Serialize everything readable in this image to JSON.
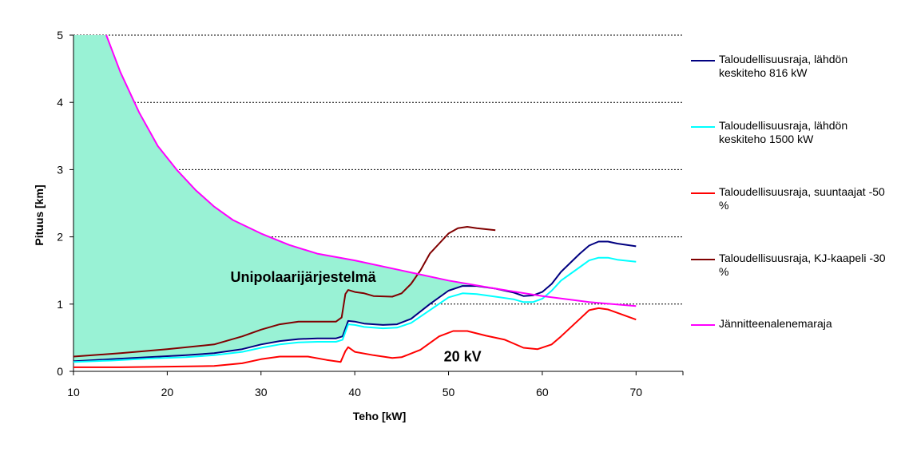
{
  "chart_data": {
    "type": "line",
    "xlabel": "Teho [kW]",
    "ylabel": "Pituus [km]",
    "xlim": [
      10,
      75
    ],
    "ylim": [
      0,
      5
    ],
    "x_ticks": [
      "10",
      "20",
      "30",
      "40",
      "50",
      "60",
      "70"
    ],
    "y_ticks": [
      "0",
      "1",
      "2",
      "3",
      "4",
      "5"
    ],
    "grid": "horizontal dotted",
    "legend_position": "right",
    "annotations": [
      {
        "text": "Unipolaarijärjestelmä",
        "x": 34.5,
        "y": 1.4
      },
      {
        "text": "20 kV",
        "x": 51.5,
        "y": 0.22
      }
    ],
    "shaded_region": {
      "label_ref": "Unipolaarijärjestelmä",
      "color": "#99F2D5",
      "between": [
        "Taloudellisuusraja, lähdön keskiteho 816 kW",
        "Jännitteenalenemaraja"
      ]
    },
    "series": [
      {
        "name": "Taloudellisuusraja, lähdön keskiteho 816 kW",
        "color": "#000080",
        "points": [
          [
            10,
            0.15
          ],
          [
            14,
            0.18
          ],
          [
            18,
            0.21
          ],
          [
            22,
            0.24
          ],
          [
            25,
            0.27
          ],
          [
            28,
            0.33
          ],
          [
            30,
            0.4
          ],
          [
            32,
            0.45
          ],
          [
            34,
            0.48
          ],
          [
            36,
            0.49
          ],
          [
            38,
            0.49
          ],
          [
            38.7,
            0.52
          ],
          [
            39.3,
            0.75
          ],
          [
            40,
            0.74
          ],
          [
            41,
            0.71
          ],
          [
            43,
            0.69
          ],
          [
            44.5,
            0.7
          ],
          [
            46,
            0.78
          ],
          [
            48,
            1.0
          ],
          [
            50,
            1.2
          ],
          [
            51.5,
            1.27
          ],
          [
            53,
            1.27
          ],
          [
            55,
            1.23
          ],
          [
            57,
            1.17
          ],
          [
            58,
            1.12
          ],
          [
            59,
            1.13
          ],
          [
            60,
            1.18
          ],
          [
            61,
            1.3
          ],
          [
            62,
            1.48
          ],
          [
            64,
            1.75
          ],
          [
            65,
            1.87
          ],
          [
            66,
            1.93
          ],
          [
            67,
            1.93
          ],
          [
            68,
            1.9
          ],
          [
            70,
            1.86
          ]
        ]
      },
      {
        "name": "Taloudellisuusraja, lähdön keskiteho 1500 kW",
        "color": "#00FFFF",
        "points": [
          [
            10,
            0.14
          ],
          [
            14,
            0.16
          ],
          [
            18,
            0.19
          ],
          [
            22,
            0.21
          ],
          [
            25,
            0.24
          ],
          [
            28,
            0.29
          ],
          [
            30,
            0.35
          ],
          [
            32,
            0.4
          ],
          [
            34,
            0.43
          ],
          [
            36,
            0.44
          ],
          [
            38,
            0.44
          ],
          [
            38.7,
            0.47
          ],
          [
            39.3,
            0.7
          ],
          [
            40,
            0.69
          ],
          [
            41,
            0.66
          ],
          [
            43,
            0.64
          ],
          [
            44.5,
            0.65
          ],
          [
            46,
            0.72
          ],
          [
            48,
            0.91
          ],
          [
            50,
            1.1
          ],
          [
            51.5,
            1.16
          ],
          [
            53,
            1.15
          ],
          [
            55,
            1.11
          ],
          [
            57,
            1.07
          ],
          [
            58,
            1.03
          ],
          [
            59,
            1.03
          ],
          [
            60,
            1.08
          ],
          [
            61,
            1.2
          ],
          [
            62,
            1.35
          ],
          [
            64,
            1.55
          ],
          [
            65,
            1.65
          ],
          [
            66,
            1.69
          ],
          [
            67,
            1.69
          ],
          [
            68,
            1.66
          ],
          [
            70,
            1.63
          ]
        ]
      },
      {
        "name": "Taloudellisuusraja, suuntaajat -50 %",
        "color": "#FF0000",
        "points": [
          [
            10,
            0.06
          ],
          [
            15,
            0.06
          ],
          [
            20,
            0.07
          ],
          [
            25,
            0.08
          ],
          [
            28,
            0.12
          ],
          [
            30,
            0.18
          ],
          [
            32,
            0.22
          ],
          [
            35,
            0.22
          ],
          [
            37,
            0.17
          ],
          [
            38.5,
            0.14
          ],
          [
            39,
            0.3
          ],
          [
            39.3,
            0.36
          ],
          [
            40,
            0.29
          ],
          [
            42,
            0.24
          ],
          [
            44,
            0.2
          ],
          [
            45,
            0.21
          ],
          [
            47,
            0.32
          ],
          [
            49,
            0.52
          ],
          [
            50.5,
            0.6
          ],
          [
            52,
            0.6
          ],
          [
            54,
            0.53
          ],
          [
            56,
            0.47
          ],
          [
            58,
            0.35
          ],
          [
            59.5,
            0.33
          ],
          [
            61,
            0.4
          ],
          [
            62,
            0.52
          ],
          [
            64,
            0.78
          ],
          [
            65,
            0.91
          ],
          [
            66,
            0.94
          ],
          [
            67,
            0.92
          ],
          [
            68,
            0.87
          ],
          [
            70,
            0.77
          ]
        ]
      },
      {
        "name": "Taloudellisuusraja, KJ-kaapeli -30 %",
        "color": "#800000",
        "points": [
          [
            10,
            0.22
          ],
          [
            15,
            0.27
          ],
          [
            20,
            0.33
          ],
          [
            25,
            0.4
          ],
          [
            28,
            0.52
          ],
          [
            30,
            0.62
          ],
          [
            32,
            0.7
          ],
          [
            34,
            0.74
          ],
          [
            36,
            0.74
          ],
          [
            38,
            0.74
          ],
          [
            38.6,
            0.8
          ],
          [
            39,
            1.15
          ],
          [
            39.3,
            1.21
          ],
          [
            40,
            1.18
          ],
          [
            41,
            1.16
          ],
          [
            42,
            1.12
          ],
          [
            44,
            1.11
          ],
          [
            45,
            1.16
          ],
          [
            46,
            1.3
          ],
          [
            47,
            1.5
          ],
          [
            48,
            1.75
          ],
          [
            49,
            1.9
          ],
          [
            50,
            2.05
          ],
          [
            51,
            2.13
          ],
          [
            52,
            2.15
          ],
          [
            53,
            2.13
          ],
          [
            55,
            2.1
          ]
        ]
      },
      {
        "name": "Jännitteenalenemaraja",
        "color": "#FF00FF",
        "points": [
          [
            13.5,
            5.0
          ],
          [
            15,
            4.45
          ],
          [
            17,
            3.85
          ],
          [
            19,
            3.35
          ],
          [
            21,
            3.0
          ],
          [
            23,
            2.7
          ],
          [
            25,
            2.45
          ],
          [
            27,
            2.25
          ],
          [
            30,
            2.05
          ],
          [
            33,
            1.88
          ],
          [
            36,
            1.75
          ],
          [
            40,
            1.65
          ],
          [
            45,
            1.5
          ],
          [
            50,
            1.35
          ],
          [
            55,
            1.23
          ],
          [
            60,
            1.12
          ],
          [
            65,
            1.03
          ],
          [
            70,
            0.97
          ]
        ]
      }
    ]
  }
}
